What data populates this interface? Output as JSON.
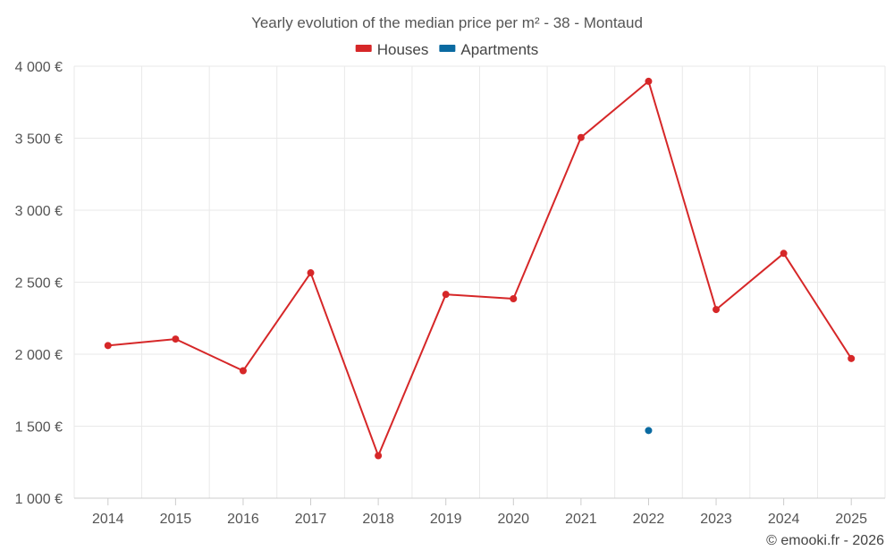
{
  "chart_data": {
    "type": "line",
    "title": "Yearly evolution of the median price per m² - 38 - Montaud",
    "categories": [
      "2014",
      "2015",
      "2016",
      "2017",
      "2018",
      "2019",
      "2020",
      "2021",
      "2022",
      "2023",
      "2024",
      "2025"
    ],
    "series": [
      {
        "name": "Houses",
        "color": "#d62728",
        "values": [
          2060,
          2105,
          1885,
          2565,
          1295,
          2415,
          2385,
          3505,
          3895,
          2310,
          2700,
          1970
        ]
      },
      {
        "name": "Apartments",
        "color": "#0a6aa1",
        "values": [
          null,
          null,
          null,
          null,
          null,
          null,
          null,
          null,
          1470,
          null,
          null,
          null
        ]
      }
    ],
    "ylim": [
      1000,
      4000
    ],
    "yticks": [
      1000,
      1500,
      2000,
      2500,
      3000,
      3500,
      4000
    ],
    "ytick_labels": [
      "1 000 €",
      "1 500 €",
      "2 000 €",
      "2 500 €",
      "3 000 €",
      "3 500 €",
      "4 000 €"
    ],
    "grid": true,
    "legend_position": "top-center",
    "credit": "© emooki.fr - 2026"
  }
}
